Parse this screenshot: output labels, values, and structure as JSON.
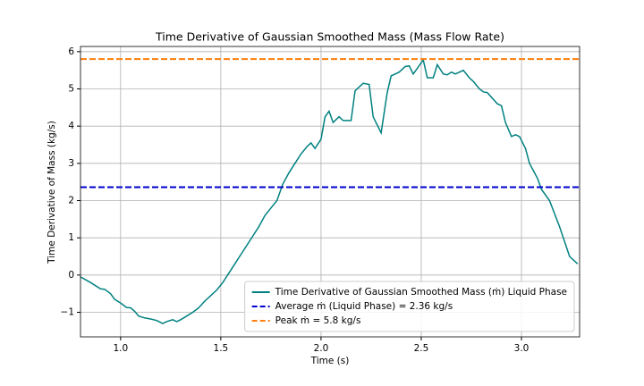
{
  "chart_data": {
    "type": "line",
    "title": "Time Derivative of Gaussian Smoothed Mass (Mass Flow Rate)",
    "xlabel": "Time (s)",
    "ylabel": "Time Derivative of Mass (kg/s)",
    "xlim": [
      0.8,
      3.29
    ],
    "ylim": [
      -1.66,
      6.14
    ],
    "xticks": [
      {
        "value": 1,
        "label": "1.0"
      },
      {
        "value": 1.5,
        "label": "1.5"
      },
      {
        "value": 2,
        "label": "2.0"
      },
      {
        "value": 2.5,
        "label": "2.5"
      },
      {
        "value": 3,
        "label": "3.0"
      }
    ],
    "yticks": [
      {
        "value": -1,
        "label": "−1"
      },
      0,
      1,
      2,
      3,
      4,
      5,
      6
    ],
    "grid": true,
    "legend": "lower right",
    "series": [
      {
        "name": "Time Derivative of Gaussian Smoothed Mass (ṁ) Liquid Phase",
        "color": "#008080",
        "x": [
          0.8,
          0.85,
          0.9,
          0.92,
          0.95,
          0.97,
          1.0,
          1.03,
          1.05,
          1.07,
          1.09,
          1.12,
          1.15,
          1.18,
          1.21,
          1.23,
          1.26,
          1.28,
          1.3,
          1.33,
          1.36,
          1.39,
          1.42,
          1.45,
          1.48,
          1.51,
          1.54,
          1.57,
          1.6,
          1.63,
          1.66,
          1.69,
          1.72,
          1.75,
          1.78,
          1.81,
          1.84,
          1.87,
          1.9,
          1.93,
          1.95,
          1.97,
          2.0,
          2.02,
          2.04,
          2.06,
          2.09,
          2.11,
          2.15,
          2.17,
          2.21,
          2.24,
          2.26,
          2.3,
          2.33,
          2.35,
          2.39,
          2.42,
          2.44,
          2.46,
          2.48,
          2.51,
          2.53,
          2.56,
          2.58,
          2.61,
          2.63,
          2.65,
          2.67,
          2.71,
          2.74,
          2.76,
          2.79,
          2.81,
          2.83,
          2.88,
          2.9,
          2.92,
          2.95,
          2.97,
          2.99,
          3.02,
          3.04,
          3.08,
          3.1,
          3.14,
          3.19,
          3.24,
          3.28
        ],
        "values": [
          -0.05,
          -0.2,
          -0.37,
          -0.38,
          -0.5,
          -0.65,
          -0.75,
          -0.87,
          -0.88,
          -0.97,
          -1.1,
          -1.15,
          -1.18,
          -1.22,
          -1.3,
          -1.25,
          -1.2,
          -1.25,
          -1.2,
          -1.1,
          -1.0,
          -0.88,
          -0.7,
          -0.55,
          -0.4,
          -0.2,
          0.05,
          0.3,
          0.55,
          0.8,
          1.05,
          1.3,
          1.6,
          1.8,
          2.0,
          2.45,
          2.75,
          3.0,
          3.25,
          3.45,
          3.55,
          3.4,
          3.65,
          4.25,
          4.4,
          4.1,
          4.25,
          4.15,
          4.15,
          4.95,
          5.15,
          5.12,
          4.25,
          3.82,
          4.9,
          5.35,
          5.45,
          5.6,
          5.62,
          5.4,
          5.55,
          5.78,
          5.3,
          5.3,
          5.65,
          5.4,
          5.38,
          5.45,
          5.4,
          5.5,
          5.3,
          5.2,
          5.0,
          4.92,
          4.9,
          4.6,
          4.55,
          4.1,
          3.72,
          3.77,
          3.72,
          3.4,
          3.0,
          2.6,
          2.3,
          2.0,
          1.3,
          0.5,
          0.3
        ]
      }
    ],
    "hlines": [
      {
        "name": "Average ṁ (Liquid Phase) = 2.36 kg/s",
        "color": "#0000cd",
        "value": 2.36,
        "style": "dashed"
      },
      {
        "name": "Peak ṁ = 5.8 kg/s",
        "color": "#ff7f0e",
        "value": 5.8,
        "style": "dashed"
      }
    ]
  }
}
